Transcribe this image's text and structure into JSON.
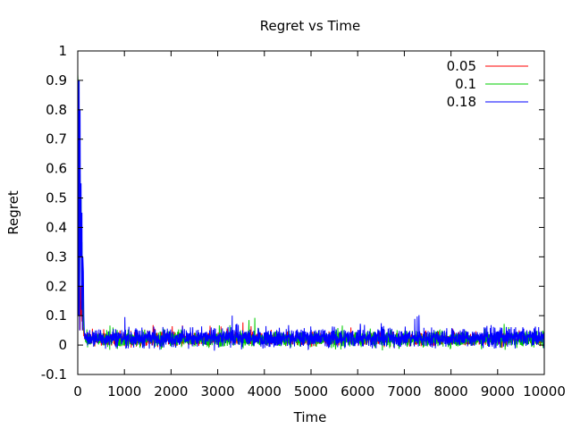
{
  "chart_data": {
    "type": "line",
    "title": "Regret vs Time",
    "xlabel": "Time",
    "ylabel": "Regret",
    "xlim": [
      0,
      10000
    ],
    "ylim": [
      -0.1,
      1
    ],
    "xticks": [
      0,
      1000,
      2000,
      3000,
      4000,
      5000,
      6000,
      7000,
      8000,
      9000,
      10000
    ],
    "yticks": [
      -0.1,
      0,
      0.1,
      0.2,
      0.3,
      0.4,
      0.5,
      0.6,
      0.7,
      0.8,
      0.9,
      1
    ],
    "grid": false,
    "legend_position": "top-right",
    "series": [
      {
        "name": "0.05",
        "color": "#ff0000",
        "x": [
          0,
          10,
          20,
          30,
          40,
          50,
          60,
          70,
          80,
          90,
          100,
          110,
          120,
          130,
          140,
          150,
          160
        ],
        "y": [
          0.9,
          0.86,
          0.6,
          0.3,
          0.12,
          0.05,
          0.2,
          0.1,
          0.15,
          0.08,
          0.12,
          0.05,
          0.06,
          0.03,
          0.04,
          0.02,
          0.03
        ],
        "steady_mean": 0.02,
        "steady_noise": 0.02
      },
      {
        "name": "0.1",
        "color": "#00cc00",
        "x": [
          0,
          10,
          20,
          30,
          40,
          50,
          60,
          70,
          80,
          90,
          100,
          110,
          120,
          130,
          140,
          150,
          160
        ],
        "y": [
          0.92,
          0.88,
          0.9,
          0.4,
          0.22,
          0.58,
          0.3,
          0.5,
          0.25,
          0.35,
          0.1,
          0.2,
          0.08,
          0.05,
          0.04,
          0.03,
          0.02
        ],
        "steady_mean": 0.02,
        "steady_noise": 0.025
      },
      {
        "name": "0.18",
        "color": "#0000ff",
        "x": [
          0,
          10,
          20,
          30,
          40,
          50,
          60,
          70,
          80,
          90,
          100,
          110,
          120,
          130,
          140,
          150,
          160
        ],
        "y": [
          0.2,
          0.9,
          0.1,
          0.9,
          0.05,
          0.8,
          0.3,
          0.55,
          0.12,
          0.45,
          0.05,
          0.3,
          0.25,
          0.1,
          0.05,
          0.02,
          0.04
        ],
        "steady_mean": 0.025,
        "steady_noise": 0.03
      }
    ]
  }
}
